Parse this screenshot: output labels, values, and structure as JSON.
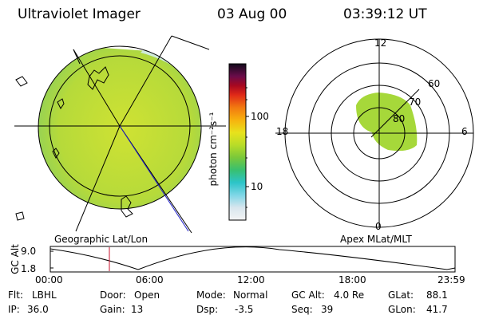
{
  "header": {
    "instrument": "Ultraviolet Imager",
    "date": "03 Aug 00",
    "time": "03:39:12 UT"
  },
  "colorbar": {
    "unit_label": "photon cm⁻²s⁻¹",
    "ticks": [
      "100",
      "10"
    ]
  },
  "left_panel": {
    "caption": "Geographic Lat/Lon"
  },
  "right_panel": {
    "caption": "Apex MLat/MLT",
    "mlt_labels": {
      "top": "12",
      "right": "6",
      "bottom": "0",
      "left": "18"
    },
    "lat_labels": [
      "60",
      "70",
      "80"
    ]
  },
  "timeline": {
    "ylabel": "GC Alt",
    "y_ticks": [
      "9.0",
      "1.8"
    ],
    "x_ticks": [
      "00:00",
      "06:00",
      "12:00",
      "18:00",
      "23:59"
    ]
  },
  "footer": {
    "row1": [
      {
        "label": "Flt:",
        "value": "LBHL"
      },
      {
        "label": "Door:",
        "value": "Open"
      },
      {
        "label": "Mode:",
        "value": "Normal"
      },
      {
        "label": "GC Alt:",
        "value": "4.0 Re"
      },
      {
        "label": "GLat:",
        "value": "88.1"
      }
    ],
    "row2": [
      {
        "label": "IP:",
        "value": "36.0"
      },
      {
        "label": "Gain:",
        "value": "13"
      },
      {
        "label": "Dsp:",
        "value": "-3.5"
      },
      {
        "label": "Seq:",
        "value": "39"
      },
      {
        "label": "GLon:",
        "value": "41.7"
      }
    ]
  },
  "colors": {
    "aurora_green": "#a6d83a",
    "marker_red": "#c8102e"
  }
}
